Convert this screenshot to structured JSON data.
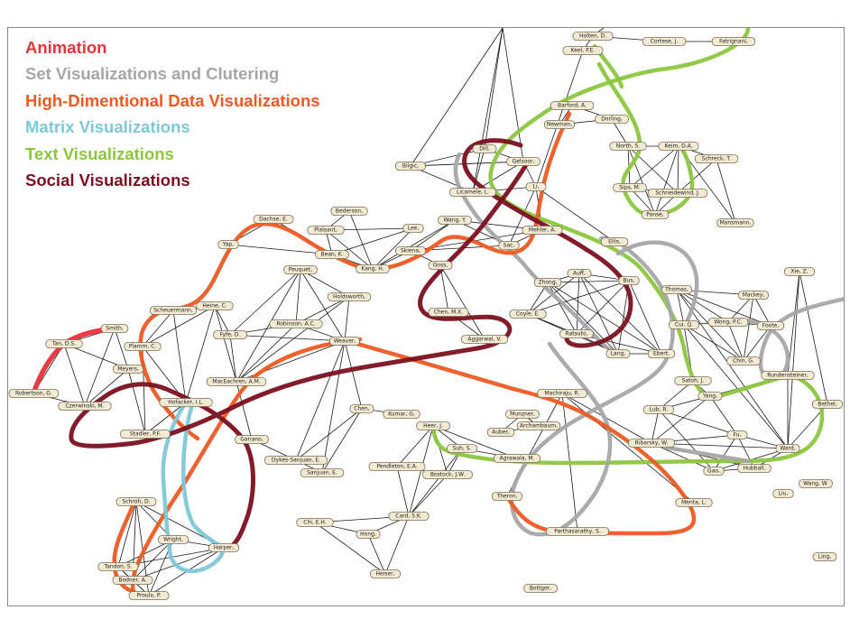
{
  "legend": [
    {
      "label": "Animation",
      "color": "#e8323c"
    },
    {
      "label": "Set Visualizations and  Clutering",
      "color": "#a6a6a6"
    },
    {
      "label": "High-Dimentional Data Visualizations",
      "color": "#ee5a22"
    },
    {
      "label": "Matrix Visualizations",
      "color": "#7ec8d8"
    },
    {
      "label": "Text Visualizations",
      "color": "#8cc63f"
    },
    {
      "label": "Social Visualizations",
      "color": "#7b1020"
    }
  ],
  "nodes": [
    {
      "id": "holten",
      "label": "Holten, D."
    },
    {
      "id": "cortese",
      "label": "Cortese, J."
    },
    {
      "id": "fatrignani",
      "label": "Fatrignani,"
    },
    {
      "id": "keel",
      "label": "Keel, P.E."
    },
    {
      "id": "barford",
      "label": "Barford, A."
    },
    {
      "id": "dorling",
      "label": "Dorling,"
    },
    {
      "id": "newman",
      "label": "Newman,"
    },
    {
      "id": "north",
      "label": "North, S."
    },
    {
      "id": "keim",
      "label": "Keim, D.A."
    },
    {
      "id": "schreck",
      "label": "Schreck, T."
    },
    {
      "id": "dill",
      "label": "Dill,"
    },
    {
      "id": "gelsoor",
      "label": "Gelsoor,"
    },
    {
      "id": "bilgic",
      "label": "Bilgic,"
    },
    {
      "id": "liccardo",
      "label": "Licamele, L."
    },
    {
      "id": "li",
      "label": "Li,"
    },
    {
      "id": "sips",
      "label": "Sips, M."
    },
    {
      "id": "schneidewind",
      "label": "Schneidewind, J."
    },
    {
      "id": "panse",
      "label": "Panse,"
    },
    {
      "id": "mansmann",
      "label": "Mansmann,"
    },
    {
      "id": "bederson",
      "label": "Bederson,"
    },
    {
      "id": "plaisant",
      "label": "Plaisant,"
    },
    {
      "id": "lee",
      "label": "Lee,"
    },
    {
      "id": "dachse",
      "label": "Dachse, E."
    },
    {
      "id": "wangy",
      "label": "Wang, Y."
    },
    {
      "id": "mehler",
      "label": "Mehler, A."
    },
    {
      "id": "yap",
      "label": "Yap,"
    },
    {
      "id": "bean",
      "label": "Bean, K."
    },
    {
      "id": "skiena",
      "label": "Skiena,"
    },
    {
      "id": "sac",
      "label": "Sac,"
    },
    {
      "id": "kangh",
      "label": "Kang, H."
    },
    {
      "id": "ellis",
      "label": "Ellis,"
    },
    {
      "id": "peuquet",
      "label": "Peuquet,"
    },
    {
      "id": "goss",
      "label": "Goss,"
    },
    {
      "id": "xiez",
      "label": "Xie, Z."
    },
    {
      "id": "holdsworth",
      "label": "Holdsworth,"
    },
    {
      "id": "auff",
      "label": "Auff,"
    },
    {
      "id": "bus",
      "label": "Bus,"
    },
    {
      "id": "zhong",
      "label": "Zhong,"
    },
    {
      "id": "thomas",
      "label": "Thomas,"
    },
    {
      "id": "mackey",
      "label": "Mackey,"
    },
    {
      "id": "coyle",
      "label": "Coyle, E."
    },
    {
      "id": "chen_mx",
      "label": "Chen, M.X."
    },
    {
      "id": "scheuermann",
      "label": "Scheuermann,"
    },
    {
      "id": "heine",
      "label": "Heine, C."
    },
    {
      "id": "robinson",
      "label": "Robinson, A.C."
    },
    {
      "id": "smith",
      "label": "Smith,"
    },
    {
      "id": "cui",
      "label": "Cui, Q."
    },
    {
      "id": "wongpc",
      "label": "Wong, P.C."
    },
    {
      "id": "foote",
      "label": "Foote,"
    },
    {
      "id": "fyfe",
      "label": "Fyfe, D."
    },
    {
      "id": "weaver",
      "label": "Weaver,"
    },
    {
      "id": "tand",
      "label": "Tan, D.S."
    },
    {
      "id": "plamm",
      "label": "Plamm, C."
    },
    {
      "id": "ratsuto",
      "label": "Ratsuto,"
    },
    {
      "id": "aggarwal",
      "label": "Aggarwal, V."
    },
    {
      "id": "lang",
      "label": "Lang,"
    },
    {
      "id": "ebert",
      "label": "Ebert,"
    },
    {
      "id": "chin",
      "label": "Chin, G."
    },
    {
      "id": "meyers",
      "label": "Meyers,"
    },
    {
      "id": "rundensteiner",
      "label": "Rundensteiner,"
    },
    {
      "id": "maceachren",
      "label": "MacEachren, A.M."
    },
    {
      "id": "satoh",
      "label": "Satoh, J."
    },
    {
      "id": "robertson",
      "label": "Robertson, G."
    },
    {
      "id": "machiraju",
      "label": "Machiraju, R."
    },
    {
      "id": "hofacker",
      "label": "Hofacker, I.L."
    },
    {
      "id": "yang",
      "label": "Yang,"
    },
    {
      "id": "bethel",
      "label": "Bethel,"
    },
    {
      "id": "czerwinski",
      "label": "Czerwinski, M."
    },
    {
      "id": "munzner",
      "label": "Munzner,"
    },
    {
      "id": "lub",
      "label": "Lub, R."
    },
    {
      "id": "archambault",
      "label": "Archambaum,"
    },
    {
      "id": "chen_b",
      "label": "Chen,"
    },
    {
      "id": "kumar",
      "label": "Kumar, G."
    },
    {
      "id": "auber",
      "label": "Auber,"
    },
    {
      "id": "fu",
      "label": "Fu,"
    },
    {
      "id": "heer",
      "label": "Heer, J."
    },
    {
      "id": "stadler",
      "label": "Stadler, P.F."
    },
    {
      "id": "gariano",
      "label": "Gariano,"
    },
    {
      "id": "ribarsky",
      "label": "Ribarsky, W."
    },
    {
      "id": "ward",
      "label": "Ward,"
    },
    {
      "id": "suhs",
      "label": "Suh, S."
    },
    {
      "id": "agrawala",
      "label": "Agrawala, M."
    },
    {
      "id": "hubball",
      "label": "Hubball,"
    },
    {
      "id": "gao",
      "label": "Gao,"
    },
    {
      "id": "dykes",
      "label": "Dykes-Sanjuan, E."
    },
    {
      "id": "pendleton",
      "label": "Pendleton, E.A."
    },
    {
      "id": "bostock",
      "label": "Bostock, J.W."
    },
    {
      "id": "sanjuan",
      "label": "Sanjuan, E."
    },
    {
      "id": "wangw",
      "label": "Wang, W."
    },
    {
      "id": "liu",
      "label": "Liu,"
    },
    {
      "id": "thorson",
      "label": "Theron,"
    },
    {
      "id": "mentai",
      "label": "Menta, L."
    },
    {
      "id": "schroh",
      "label": "Schroh, D."
    },
    {
      "id": "card",
      "label": "Card, S.K."
    },
    {
      "id": "chieh",
      "label": "Chi, E.H."
    },
    {
      "id": "hong",
      "label": "Hong,"
    },
    {
      "id": "parthasarathy",
      "label": "Parthasarathy, S."
    },
    {
      "id": "wright",
      "label": "Wright,"
    },
    {
      "id": "harper",
      "label": "Harper,"
    },
    {
      "id": "ling",
      "label": "Ling,"
    },
    {
      "id": "tandon",
      "label": "Tandon, S."
    },
    {
      "id": "bodner",
      "label": "Bodner, A."
    },
    {
      "id": "heiser",
      "label": "Heiser,"
    },
    {
      "id": "proulx",
      "label": "Proulx, P."
    },
    {
      "id": "bottger",
      "label": "Bottger,"
    }
  ]
}
